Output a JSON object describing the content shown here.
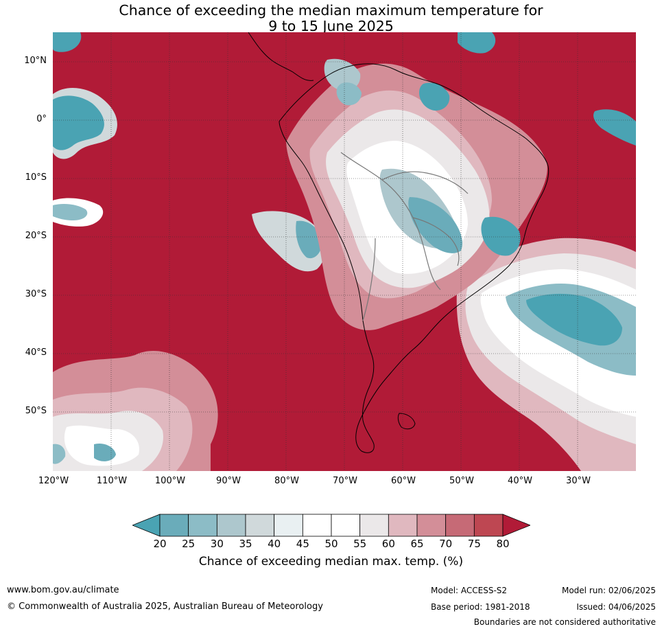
{
  "title": {
    "line1": "Chance of exceeding the median maximum temperature for",
    "line2": "9 to 15 June 2025"
  },
  "map": {
    "lat_labels": [
      "10°N",
      "0°",
      "10°S",
      "20°S",
      "30°S",
      "40°S",
      "50°S"
    ],
    "lon_labels": [
      "120°W",
      "110°W",
      "100°W",
      "90°W",
      "80°W",
      "70°W",
      "60°W",
      "50°W",
      "40°W",
      "30°W"
    ]
  },
  "colorbar": {
    "ticks": [
      "20",
      "25",
      "30",
      "35",
      "40",
      "45",
      "50",
      "55",
      "60",
      "65",
      "70",
      "75",
      "80"
    ],
    "colors": [
      "#4aa3b3",
      "#6aacba",
      "#8cbcc6",
      "#adc7cd",
      "#d0d9db",
      "#e9f0f2",
      "#ffffff",
      "#ffffff",
      "#ebe8e9",
      "#e0b8bf",
      "#d38e98",
      "#c66a76",
      "#be4752",
      "#b11b37"
    ],
    "label": "Chance of exceeding median max. temp. (%)"
  },
  "footer": {
    "website": "www.bom.gov.au/climate",
    "copyright": "© Commonwealth of Australia 2025, Australian Bureau of Meteorology",
    "model": "Model: ACCESS-S2",
    "base_period": "Base period: 1981-2018",
    "model_run": "Model run: 02/06/2025",
    "issued": "Issued: 04/06/2025",
    "disclaimer": "Boundaries are not considered authoritative"
  }
}
